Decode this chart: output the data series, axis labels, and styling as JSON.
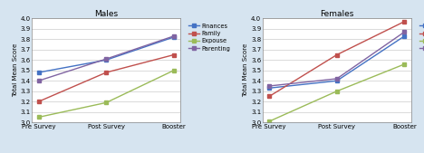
{
  "males": {
    "title": "Males",
    "series": {
      "Finances": [
        3.48,
        3.6,
        3.82
      ],
      "Family": [
        3.2,
        3.48,
        3.65
      ],
      "Expouse": [
        3.05,
        3.19,
        3.5
      ],
      "Parenting": [
        3.4,
        3.61,
        3.83
      ]
    }
  },
  "females": {
    "title": "Females",
    "series": {
      "Finances": [
        3.33,
        3.4,
        3.83
      ],
      "Family": [
        3.25,
        3.65,
        3.97
      ],
      "Expouse": [
        3.01,
        3.3,
        3.56
      ],
      "Parenting": [
        3.35,
        3.42,
        3.87
      ]
    }
  },
  "x_labels": [
    "Pre Survey",
    "Post Survey",
    "Booster"
  ],
  "ylabel": "Total Mean Score",
  "ylim": [
    3.0,
    4.0
  ],
  "yticks": [
    3.0,
    3.1,
    3.2,
    3.3,
    3.4,
    3.5,
    3.6,
    3.7,
    3.8,
    3.9,
    4.0
  ],
  "colors": {
    "Finances": "#4472C4",
    "Family": "#C0504D",
    "Expouse": "#9BBB59",
    "Parenting": "#8064A2"
  },
  "background_color": "#D6E4F0",
  "plot_bg_color": "#FFFFFF",
  "marker": "s",
  "marker_size": 2.5,
  "linewidth": 1.0,
  "title_fontsize": 6.5,
  "tick_fontsize": 5.0,
  "label_fontsize": 5.0,
  "legend_fontsize": 4.8
}
